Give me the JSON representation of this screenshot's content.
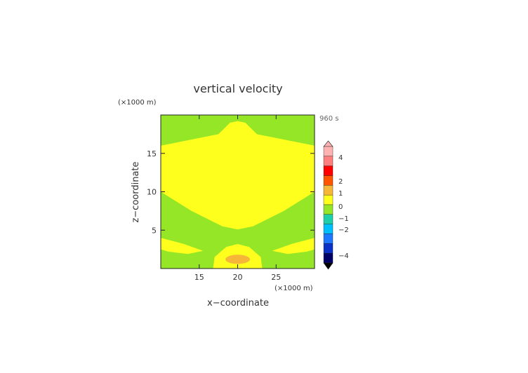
{
  "chart_data": {
    "type": "heatmap",
    "title": "vertical velocity",
    "xlabel": "x−coordinate",
    "ylabel": "z−coordinate",
    "x_unit": "(×1000 m)",
    "y_unit": "(×1000 m)",
    "time_label": "960 s",
    "xlim": [
      10,
      30
    ],
    "ylim": [
      0,
      20
    ],
    "x_ticks": [
      15,
      20,
      25
    ],
    "y_ticks": [
      5,
      10,
      15
    ],
    "colors": {
      "background": "#96e628",
      "positive": "#ffff1e",
      "max_region": "#f6b638"
    },
    "regions": [
      {
        "level": "0 to 0.5",
        "color": "#ffff1e",
        "boundary": [
          [
            10,
            16
          ],
          [
            17.5,
            17.5
          ],
          [
            19,
            19
          ],
          [
            20,
            19.2
          ],
          [
            21,
            19
          ],
          [
            22.5,
            17.5
          ],
          [
            30,
            16
          ],
          [
            30,
            10
          ],
          [
            26,
            7.5
          ],
          [
            22,
            5.5
          ],
          [
            20,
            5.1
          ],
          [
            18,
            5.5
          ],
          [
            14,
            7.5
          ],
          [
            10,
            10
          ]
        ]
      },
      {
        "level": "0 to 0.5",
        "color": "#ffff1e",
        "boundary": [
          [
            10,
            4
          ],
          [
            13,
            3.2
          ],
          [
            15.5,
            2.3
          ],
          [
            13.5,
            1.9
          ],
          [
            11,
            2.2
          ],
          [
            10,
            2.5
          ]
        ]
      },
      {
        "level": "0 to 0.5",
        "color": "#ffff1e",
        "boundary": [
          [
            30,
            4
          ],
          [
            27,
            3.2
          ],
          [
            24.5,
            2.3
          ],
          [
            26.5,
            1.9
          ],
          [
            29,
            2.2
          ],
          [
            30,
            2.5
          ]
        ]
      },
      {
        "level": "0 to 0.5",
        "color": "#ffff1e",
        "boundary": [
          [
            16.8,
            0
          ],
          [
            17,
            1.5
          ],
          [
            18.5,
            2.8
          ],
          [
            20,
            3.2
          ],
          [
            21.5,
            2.8
          ],
          [
            23,
            1.5
          ],
          [
            23.2,
            0
          ]
        ]
      },
      {
        "level": "0.5 to 1",
        "color": "#f6b638",
        "ellipse": {
          "cx": 20,
          "cy": 1.2,
          "rx": 1.6,
          "ry": 0.6
        }
      }
    ],
    "colorbar": {
      "labels": [
        "4",
        "2",
        "1",
        "0",
        "−1",
        "−2",
        "−4"
      ],
      "colors": [
        "#ffb2b2",
        "#ff7f7f",
        "#ff0000",
        "#ff5400",
        "#f6b638",
        "#ffff1e",
        "#96e628",
        "#1ecfaa",
        "#00bfff",
        "#1e78ff",
        "#0a32c8",
        "#000066"
      ]
    }
  }
}
